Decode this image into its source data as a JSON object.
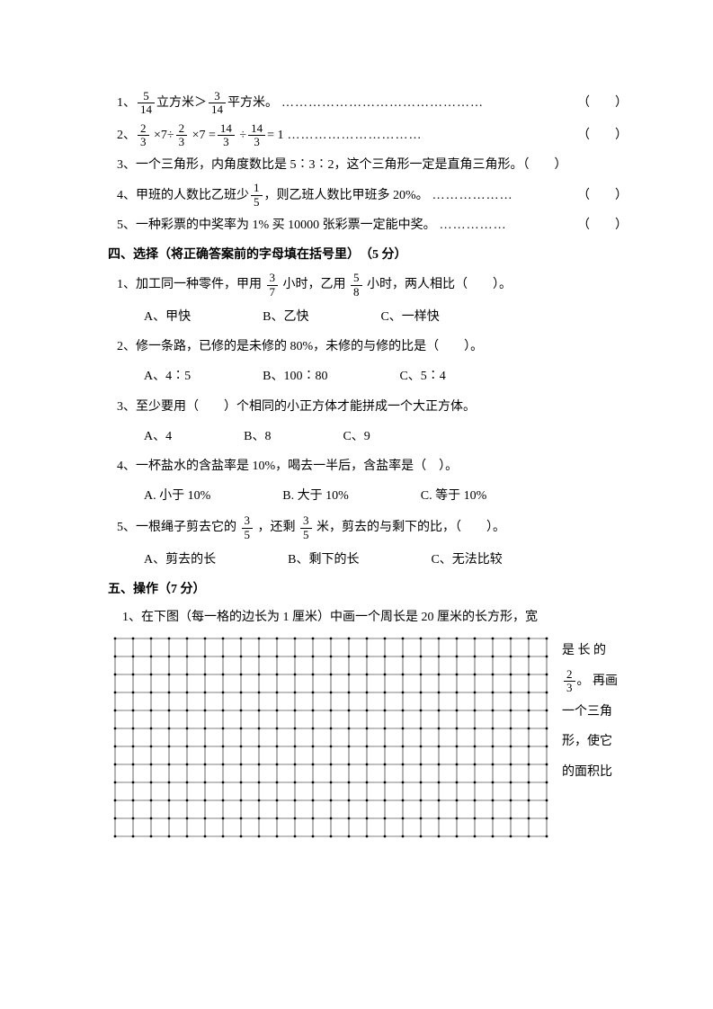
{
  "tf": {
    "q1": {
      "prefix": "1、",
      "a": "5",
      "b": "14",
      "mid": " 立方米＞",
      "c": "3",
      "d": "14",
      "suffix": " 平方米。",
      "dots": "………………………………………",
      "paren": "（　　）"
    },
    "q2": {
      "prefix": "2、",
      "a": "2",
      "b": "3",
      "c": "2",
      "d": "3",
      "e": "14",
      "f": "3",
      "g": "14",
      "h": "3",
      "suffix": " = 1",
      "dots": "…………………………",
      "paren": "（　　）"
    },
    "q3": {
      "text": "3、一个三角形，内角度数比是 5∶3∶2，这个三角形一定是直角三角形。（　　）"
    },
    "q4": {
      "prefix": "4、甲班的人数比乙班少 ",
      "a": "1",
      "b": "5",
      "suffix": "，则乙班人数比甲班多 20%。",
      "dots": "………………",
      "paren": "（　　）"
    },
    "q5": {
      "text": "5、一种彩票的中奖率为 1% 买 10000 张彩票一定能中奖。",
      "dots": "……………",
      "paren": "（　　）"
    }
  },
  "sec4": {
    "title": "四、选择（将正确答案前的字母填在括号里）　（5 分）"
  },
  "mc": {
    "q1": {
      "prefix": "1、加工同一种零件，甲用",
      "a": "3",
      "b": "7",
      "mid": " 小时，乙用",
      "c": "5",
      "d": "8",
      "suffix": " 小时，两人相比（　　）。",
      "A": "A、甲快",
      "B": "B、乙快",
      "C": "C、一样快"
    },
    "q2": {
      "text": "2、修一条路，已修的是未修的 80%，未修的与修的比是（　　）。",
      "A": "A、4∶5",
      "B": "B、100∶80",
      "C": "C、5∶4"
    },
    "q3": {
      "text": "3、至少要用（　　）个相同的小正方体才能拼成一个大正方体。",
      "A": "A、4",
      "B": "B、8",
      "C": "C、9"
    },
    "q4": {
      "text": "4、一杯盐水的含盐率是 10%，喝去一半后，含盐率是（　）。",
      "A": "A. 小于 10%",
      "B": "B. 大于 10%",
      "C": "C. 等于 10%"
    },
    "q5": {
      "prefix": "5、一根绳子剪去它的",
      "a": "3",
      "b": "5",
      "mid": "，还剩",
      "c": "3",
      "d": "5",
      "suffix": "米，剪去的与剩下的比，（　　）。",
      "A": "A、剪去的长",
      "B": "B、剩下的长",
      "C": "C、无法比较"
    }
  },
  "sec5": {
    "title": "五、操作（7 分）"
  },
  "draw": {
    "text": "1、在下图（每一格的边长为 1 厘米）中画一个周长是 20 厘米的长方形，宽",
    "side": {
      "r1p1": "是",
      "r1p2": "长",
      "r1p3": "的",
      "r2a": "2",
      "r2b": "3",
      "r2suffix": "。",
      "r2p2": "再画",
      "r3": "一个三角",
      "r4": "形，使它",
      "r5": "的面积比"
    }
  },
  "grid": {
    "cols": 24,
    "rows": 11,
    "cell": 20,
    "stroke": "#000",
    "dot_r": 1.4
  }
}
